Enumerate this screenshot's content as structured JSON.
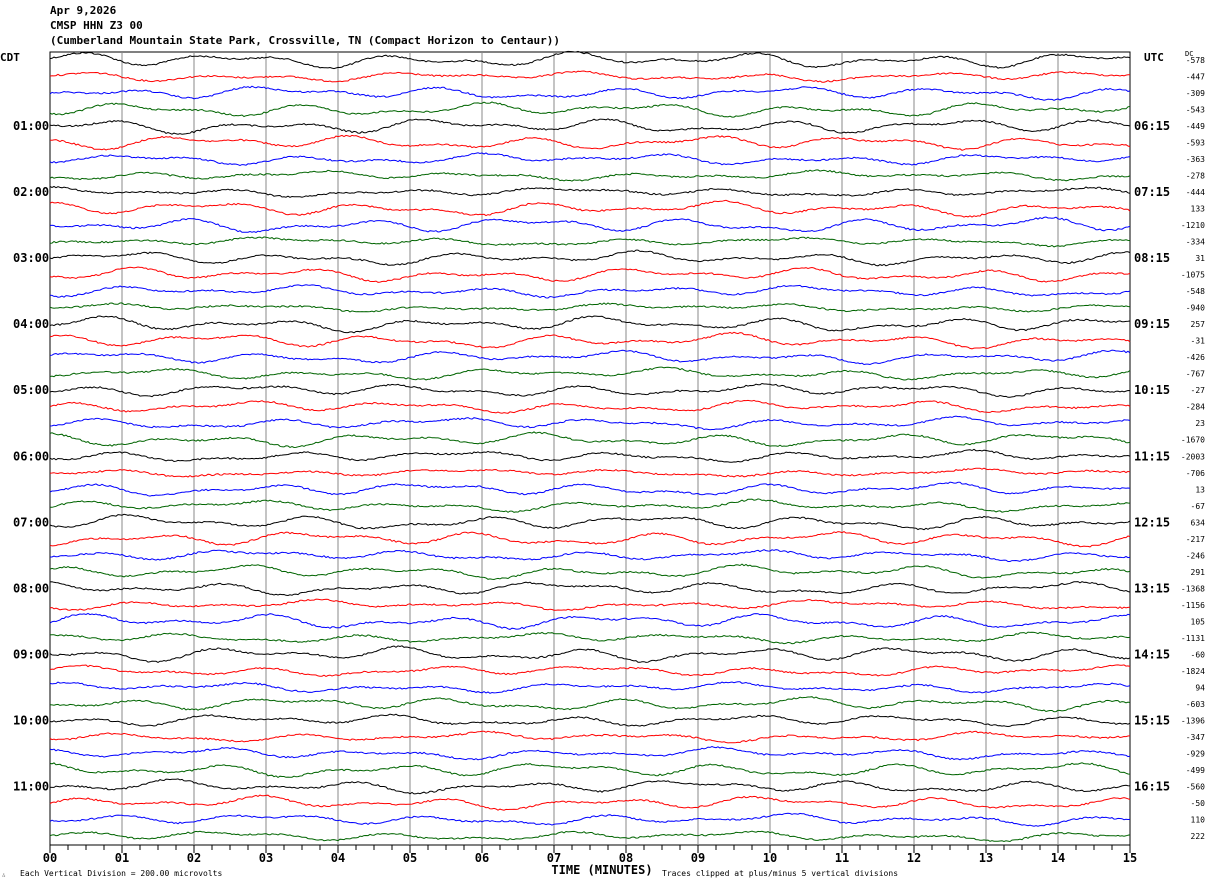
{
  "header": {
    "date": "Apr 9,2026",
    "station": "CMSP HHN Z3 00",
    "location": "(Cumberland Mountain State Park, Crossville, TN (Compact Horizon to Centaur))"
  },
  "chart_data": {
    "type": "line",
    "subtype": "helicorder",
    "left_axis_label": "CDT",
    "right_axis_label": "UTC",
    "dc_label": "DC",
    "xlabel": "TIME (MINUTES)",
    "xlim": [
      0,
      15
    ],
    "x_ticks": [
      "00",
      "01",
      "02",
      "03",
      "04",
      "05",
      "06",
      "07",
      "08",
      "09",
      "10",
      "11",
      "12",
      "13",
      "14",
      "15"
    ],
    "grid": true,
    "traces_per_hour": 4,
    "trace_colors": [
      "#000000",
      "#ff0000",
      "#0000ff",
      "#006400"
    ],
    "left_time_labels": [
      "01:00",
      "02:00",
      "03:00",
      "04:00",
      "05:00",
      "06:00",
      "07:00",
      "08:00",
      "09:00",
      "10:00",
      "11:00"
    ],
    "right_time_labels": [
      "06:15",
      "07:15",
      "08:15",
      "09:15",
      "10:15",
      "11:15",
      "12:15",
      "13:15",
      "14:15",
      "15:15",
      "16:15"
    ],
    "dc_offsets": [
      -578,
      -447,
      -309,
      -543,
      -449,
      -593,
      -363,
      -278,
      -444,
      133,
      -1210,
      -334,
      31,
      -1075,
      -548,
      -940,
      257,
      -31,
      -426,
      -767,
      -27,
      -284,
      23,
      -1670,
      -2003,
      -706,
      13,
      -67,
      634,
      -217,
      -246,
      291,
      -1368,
      -1156,
      105,
      -1131,
      -60,
      -1824,
      94,
      -603,
      -1396,
      -347,
      -929,
      -499,
      -560,
      -50,
      110,
      222
    ],
    "scale_note": "Each Vertical Division =  200.00 microvolts",
    "clip_note": "Traces clipped at plus/minus 5 vertical divisions"
  }
}
